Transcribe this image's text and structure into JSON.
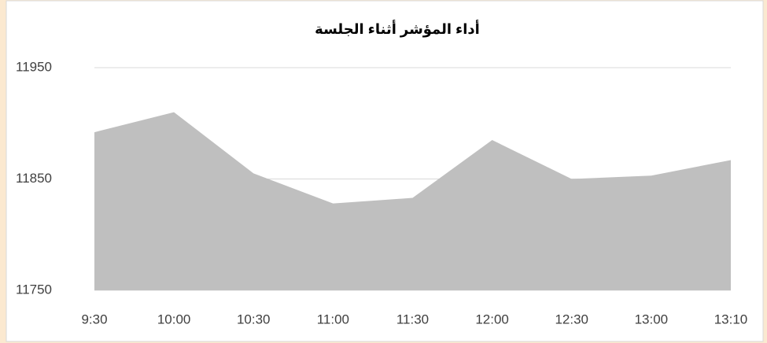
{
  "chart_data": {
    "type": "area",
    "title": "أداء المؤشر أثناء الجلسة",
    "categories": [
      "9:30",
      "10:00",
      "10:30",
      "11:00",
      "11:30",
      "12:00",
      "12:30",
      "13:00",
      "13:10"
    ],
    "values": [
      11892,
      11910,
      11855,
      11828,
      11833,
      11885,
      11850,
      11853,
      11867
    ],
    "color": "#bfbfbf",
    "ylim": [
      11750,
      11950
    ],
    "yticks": [
      11750,
      11850,
      11950
    ],
    "grid": true
  }
}
